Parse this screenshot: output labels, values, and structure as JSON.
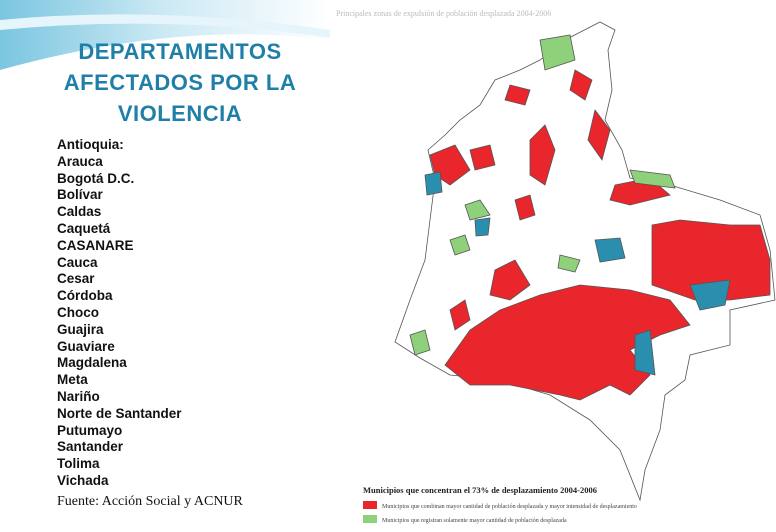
{
  "header": {
    "title_lines": [
      "DEPARTAMENTOS",
      "AFECTADOS POR LA",
      "VIOLENCIA"
    ]
  },
  "departments": [
    "Antioquia:",
    "Arauca",
    "Bogotá D.C.",
    "Bolívar",
    "Caldas",
    "Caquetá",
    "CASANARE",
    "Cauca",
    "Cesar",
    "Córdoba",
    "Choco",
    "Guajira",
    "Guaviare",
    "Magdalena",
    "Meta",
    "Nariño",
    "Norte de Santander",
    "Putumayo",
    "Santander",
    "Tolima",
    "Vichada"
  ],
  "source": "Fuente: Acción Social y ACNUR",
  "map": {
    "title": "Principales zonas de expulsión de población desplazada 2004-2006",
    "legend_title": "Municipios que concentran el 73% de desplazamiento 2004-2006",
    "legend": [
      {
        "label": "Municipios que combinan mayor cantidad de población desplazada y mayor intensidad de desplazamiento",
        "color": "#e8262b"
      },
      {
        "label": "Municipios que registran solamente mayor cantidad de población desplazada",
        "color": "#8fd07a"
      }
    ]
  }
}
